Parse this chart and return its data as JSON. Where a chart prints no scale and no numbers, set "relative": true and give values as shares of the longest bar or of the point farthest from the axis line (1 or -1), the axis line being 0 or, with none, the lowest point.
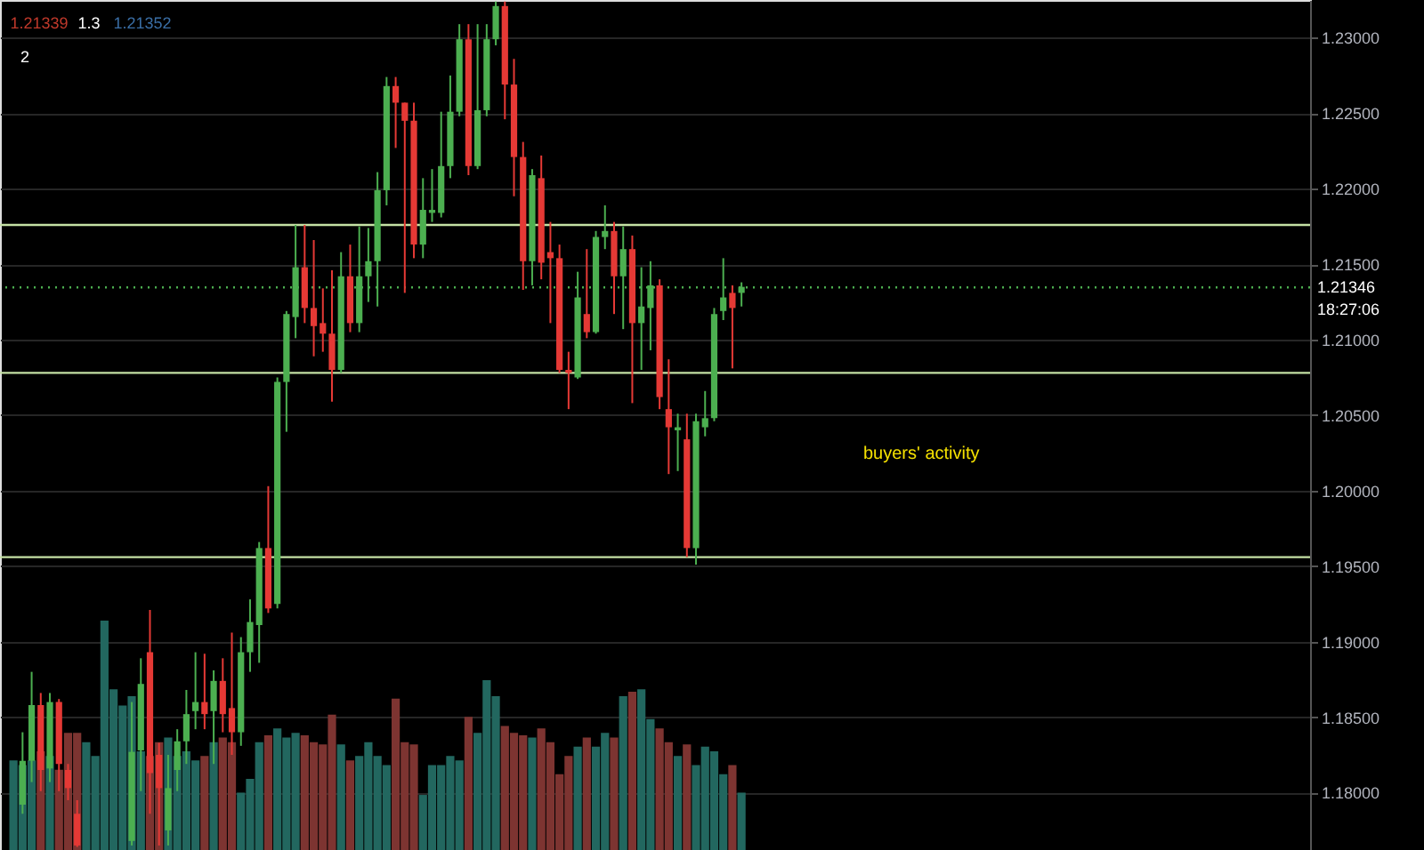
{
  "chart_data": [
    {
      "type": "candlestick",
      "categories": [
        null,
        null,
        null,
        null,
        null,
        null,
        null,
        null,
        null,
        null,
        null,
        null,
        null,
        null,
        null,
        null,
        null,
        null,
        null,
        null,
        null,
        null,
        null,
        null,
        null,
        null,
        null,
        null,
        null,
        null,
        null,
        null,
        null,
        null,
        null,
        null,
        null,
        null,
        null,
        null,
        null,
        null,
        null,
        null,
        null,
        null,
        null,
        null,
        null,
        null,
        null,
        null,
        null,
        null,
        null,
        null,
        null,
        null,
        null,
        null,
        null,
        null,
        null,
        null,
        null,
        null,
        null,
        null,
        null,
        null,
        null,
        null,
        null,
        null,
        null,
        null,
        null,
        null,
        null,
        null,
        null,
        null,
        null,
        null,
        null,
        null,
        null,
        null,
        null,
        null,
        null,
        null,
        null,
        null,
        null,
        null,
        null,
        null,
        null,
        null,
        null,
        null,
        null,
        null,
        null,
        null,
        null,
        null,
        null,
        null,
        null,
        null,
        null,
        null,
        null,
        null,
        null,
        null,
        null,
        null,
        null,
        null,
        null,
        null,
        null,
        null,
        null,
        null,
        null,
        null,
        null,
        null,
        null,
        null,
        null,
        null,
        null,
        null,
        null,
        null,
        null,
        null
      ],
      "ohlc": [
        null,
        [
          1.1792,
          1.184,
          1.1786,
          1.1821
        ],
        [
          1.1821,
          1.188,
          1.1807,
          1.1858
        ],
        [
          1.1858,
          1.1866,
          1.1801,
          1.1815
        ],
        [
          1.1816,
          1.1866,
          1.1807,
          1.186
        ],
        [
          1.186,
          1.1862,
          1.1801,
          1.1819
        ],
        [
          1.1815,
          1.1819,
          1.1795,
          1.1803
        ],
        [
          1.1786,
          1.1795,
          1.1764,
          1.1765
        ],
        null,
        null,
        null,
        null,
        null,
        [
          1.1768,
          1.186,
          1.1765,
          1.1827
        ],
        [
          1.1828,
          1.1889,
          1.1801,
          1.1872
        ],
        [
          1.1893,
          1.1921,
          1.1786,
          1.1813
        ],
        [
          1.1825,
          1.1833,
          1.1765,
          1.1803
        ],
        [
          1.1775,
          1.1825,
          1.1765,
          1.1803
        ],
        [
          1.1815,
          1.1842,
          1.1801,
          1.1834
        ],
        [
          1.1834,
          1.1868,
          1.1819,
          1.1852
        ],
        [
          1.1854,
          1.1893,
          1.1842,
          1.186
        ],
        [
          1.186,
          1.1892,
          1.1842,
          1.1852
        ],
        [
          1.1854,
          1.1881,
          1.1819,
          1.1874
        ],
        [
          1.1874,
          1.1889,
          1.184,
          1.1852
        ],
        [
          1.1856,
          1.1906,
          1.1825,
          1.184
        ],
        [
          1.184,
          1.1903,
          1.1831,
          1.1893
        ],
        [
          1.1893,
          1.1928,
          1.188,
          1.1913
        ],
        [
          1.1911,
          1.1966,
          1.1886,
          1.1962
        ],
        [
          1.1962,
          1.2003,
          1.1919,
          1.1922
        ],
        [
          1.1925,
          1.2075,
          1.1922,
          1.2072
        ],
        [
          1.2072,
          1.2119,
          1.2039,
          1.2117
        ],
        [
          1.2115,
          1.2176,
          1.2101,
          1.2148
        ],
        [
          1.2148,
          1.2176,
          1.2111,
          1.2121
        ],
        [
          1.2121,
          1.2166,
          1.2089,
          1.2109
        ],
        [
          1.2111,
          1.2134,
          1.2092,
          1.2104
        ],
        [
          1.2104,
          1.2146,
          1.2059,
          1.208
        ],
        [
          1.208,
          1.2158,
          1.2078,
          1.2142
        ],
        [
          1.2142,
          1.2163,
          1.2105,
          1.2111
        ],
        [
          1.2111,
          1.2175,
          1.2105,
          1.2142
        ],
        [
          1.2142,
          1.2174,
          1.2125,
          1.2152
        ],
        [
          1.2152,
          1.2211,
          1.2122,
          1.2199
        ],
        [
          1.2199,
          1.2274,
          1.2189,
          1.2268
        ],
        [
          1.2268,
          1.2274,
          1.2227,
          1.2257
        ],
        [
          1.2257,
          1.2257,
          1.2131,
          1.2245
        ],
        [
          1.2245,
          1.2257,
          1.2154,
          1.2163
        ],
        [
          1.2163,
          1.2207,
          1.2154,
          1.2186
        ],
        [
          1.2184,
          1.2213,
          1.2178,
          1.2186
        ],
        [
          1.2184,
          1.2251,
          1.2181,
          1.2215
        ],
        [
          1.2215,
          1.2275,
          1.2207,
          1.2251
        ],
        [
          1.2251,
          1.2309,
          1.2248,
          1.2299
        ],
        [
          1.2299,
          1.2309,
          1.2209,
          1.2215
        ],
        [
          1.2215,
          1.2309,
          1.2213,
          1.2252
        ],
        [
          1.2252,
          1.2309,
          1.2248,
          1.2299
        ],
        [
          1.2299,
          1.2324,
          1.2295,
          1.2321
        ],
        [
          1.2321,
          1.2324,
          1.2246,
          1.2269
        ],
        [
          1.2269,
          1.2286,
          1.2195,
          1.2221
        ],
        [
          1.2221,
          1.2231,
          1.2133,
          1.2152
        ],
        [
          1.2152,
          1.2213,
          1.2136,
          1.2209
        ],
        [
          1.2207,
          1.2222,
          1.214,
          1.2151
        ],
        [
          1.2158,
          1.2178,
          1.2111,
          1.2154
        ],
        [
          1.2154,
          1.2163,
          1.2078,
          1.208
        ],
        [
          1.208,
          1.2092,
          1.2054,
          1.2078
        ],
        [
          1.2075,
          1.2145,
          1.2074,
          1.2128
        ],
        [
          1.2117,
          1.216,
          1.2101,
          1.2105
        ],
        [
          1.2105,
          1.2172,
          1.2104,
          1.2168
        ],
        [
          1.2168,
          1.2189,
          1.216,
          1.2172
        ],
        [
          1.2172,
          1.2178,
          1.2117,
          1.2142
        ],
        [
          1.2142,
          1.2175,
          1.2107,
          1.216
        ],
        [
          1.216,
          1.2169,
          1.2058,
          1.2111
        ],
        [
          1.2111,
          1.2148,
          1.208,
          1.2122
        ],
        [
          1.2121,
          1.2152,
          1.2093,
          1.2136
        ],
        [
          1.2136,
          1.214,
          1.2054,
          1.2062
        ],
        [
          1.2054,
          1.2087,
          1.2011,
          1.2042
        ],
        [
          1.204,
          1.2051,
          1.2013,
          1.2042
        ],
        [
          1.2034,
          1.2051,
          1.1956,
          1.1962
        ],
        [
          1.1962,
          1.2051,
          1.1951,
          1.2046
        ],
        [
          1.2042,
          1.2066,
          1.2036,
          1.2048
        ],
        [
          1.2048,
          1.2121,
          1.2046,
          1.2117
        ],
        [
          1.2119,
          1.2154,
          1.2113,
          1.2128
        ],
        [
          1.2131,
          1.2136,
          1.2081,
          1.2121
        ],
        [
          1.2131,
          1.2138,
          1.2122,
          1.2135
        ],
        null,
        null,
        null,
        null,
        null,
        null,
        null,
        null,
        null,
        null,
        null,
        null,
        null,
        null,
        null,
        null,
        null,
        null,
        null,
        null,
        null,
        null,
        null,
        null,
        null,
        null,
        null,
        null,
        null,
        null,
        null,
        null,
        null,
        null,
        null,
        null,
        null,
        null,
        null,
        null,
        null,
        null,
        null,
        null,
        null,
        null,
        null,
        null,
        null,
        null,
        null,
        null,
        null,
        null,
        null,
        null,
        null,
        null,
        null,
        null,
        null
      ],
      "colors": [
        null,
        "#4caf50",
        "#4caf50",
        "#e53935",
        "#4caf50",
        "#e53935",
        "#e53935",
        "#e53935",
        null,
        null,
        null,
        null,
        null,
        "#4caf50",
        "#4caf50",
        "#e53935",
        "#e53935",
        "#4caf50",
        "#4caf50",
        "#4caf50",
        "#4caf50",
        "#e53935",
        "#4caf50",
        "#e53935",
        "#e53935",
        "#4caf50",
        "#4caf50",
        "#4caf50",
        "#e53935",
        "#4caf50",
        "#4caf50",
        "#4caf50",
        "#e53935",
        "#e53935",
        "#e53935",
        "#e53935",
        "#4caf50",
        "#e53935",
        "#4caf50",
        "#4caf50",
        "#4caf50",
        "#4caf50",
        "#e53935",
        "#e53935",
        "#e53935",
        "#4caf50",
        "#4caf50",
        "#4caf50",
        "#4caf50",
        "#4caf50",
        "#e53935",
        "#4caf50",
        "#4caf50",
        "#4caf50",
        "#e53935",
        "#e53935",
        "#e53935",
        "#4caf50",
        "#e53935",
        "#e53935",
        "#e53935",
        "#e53935",
        "#4caf50",
        "#e53935",
        "#4caf50",
        "#4caf50",
        "#e53935",
        "#4caf50",
        "#e53935",
        "#4caf50",
        "#4caf50",
        "#e53935",
        "#e53935",
        "#4caf50",
        "#e53935",
        "#4caf50",
        "#4caf50",
        "#4caf50",
        "#4caf50",
        "#e53935",
        "#4caf50",
        null,
        null,
        null,
        null,
        null,
        null,
        null,
        null,
        null,
        null,
        null,
        null,
        null,
        null,
        null,
        null,
        null,
        null,
        null,
        null,
        null,
        null,
        null,
        null,
        null,
        null,
        null,
        null,
        null,
        null,
        null,
        null,
        null,
        null,
        null,
        null,
        null,
        null,
        null,
        null,
        null,
        null,
        null,
        null,
        null,
        null,
        null,
        null,
        null,
        null,
        null,
        null,
        null,
        null,
        null,
        null,
        null,
        null,
        null,
        null,
        null
      ],
      "ylim": [
        1.1762,
        1.2325
      ],
      "yticks": [
        {
          "value": 1.18,
          "label": "1.18000"
        },
        {
          "value": 1.185,
          "label": "1.18500"
        },
        {
          "value": 1.19,
          "label": "1.19000"
        },
        {
          "value": 1.195,
          "label": "1.19500"
        },
        {
          "value": 1.2,
          "label": "1.20000"
        },
        {
          "value": 1.205,
          "label": "1.20500"
        },
        {
          "value": 1.21,
          "label": "1.21000"
        },
        {
          "value": 1.215,
          "label": "1.21500"
        },
        {
          "value": 1.22,
          "label": "1.22000"
        },
        {
          "value": 1.225,
          "label": "1.22500"
        },
        {
          "value": 1.23,
          "label": "1.23000"
        }
      ],
      "tick_labels": "y",
      "grid": true,
      "ref_lines": [
        {
          "axis": "y",
          "value": 1.2176,
          "color": "#c5e1a5"
        },
        {
          "axis": "y",
          "value": 1.2078,
          "color": "#c5e1a5"
        },
        {
          "axis": "y",
          "value": 1.1956,
          "color": "#c5e1a5"
        },
        {
          "axis": "y",
          "value": 1.21346,
          "label": "1.21346",
          "color": "#4caf50",
          "line_style": "dotted"
        }
      ],
      "annotations": [
        "buyers' activity",
        "18:27:06",
        "1.21339",
        "1.3",
        "1.21352",
        "2"
      ]
    },
    {
      "type": "bar",
      "relative": true,
      "categories": [
        null,
        null,
        null,
        null,
        null,
        null,
        null,
        null,
        null,
        null,
        null,
        null,
        null,
        null,
        null,
        null,
        null,
        null,
        null,
        null,
        null,
        null,
        null,
        null,
        null,
        null,
        null,
        null,
        null,
        null,
        null,
        null,
        null,
        null,
        null,
        null,
        null,
        null,
        null,
        null,
        null,
        null,
        null,
        null,
        null,
        null,
        null,
        null,
        null,
        null,
        null,
        null,
        null,
        null,
        null,
        null,
        null,
        null,
        null,
        null,
        null,
        null,
        null,
        null,
        null,
        null,
        null,
        null,
        null,
        null,
        null,
        null,
        null,
        null,
        null,
        null,
        null,
        null,
        null,
        null,
        null,
        null,
        null,
        null,
        null,
        null,
        null,
        null,
        null,
        null,
        null,
        null,
        null,
        null,
        null,
        null,
        null,
        null,
        null,
        null,
        null,
        null,
        null,
        null,
        null,
        null,
        null,
        null,
        null,
        null,
        null,
        null,
        null,
        null,
        null,
        null,
        null,
        null,
        null,
        null,
        null,
        null,
        null,
        null,
        null,
        null,
        null,
        null,
        null,
        null,
        null,
        null,
        null,
        null,
        null,
        null,
        null,
        null,
        null,
        null,
        null,
        null
      ],
      "values": [
        0.39,
        0.37,
        0.39,
        0.43,
        0.41,
        0.35,
        0.51,
        0.51,
        0.47,
        0.41,
        1,
        0.7,
        0.63,
        0.67,
        0.43,
        0.41,
        0.47,
        0.49,
        0.41,
        0.43,
        0.39,
        0.41,
        0.47,
        0.49,
        0.47,
        0.25,
        0.31,
        0.47,
        0.5,
        0.53,
        0.49,
        0.51,
        0.5,
        0.47,
        0.46,
        0.59,
        0.46,
        0.39,
        0.41,
        0.47,
        0.41,
        0.37,
        0.66,
        0.47,
        0.46,
        0.24,
        0.37,
        0.37,
        0.41,
        0.39,
        0.58,
        0.51,
        0.74,
        0.67,
        0.54,
        0.51,
        0.5,
        0.49,
        0.53,
        0.47,
        0.33,
        0.41,
        0.45,
        0.49,
        0.45,
        0.51,
        0.49,
        0.67,
        0.69,
        0.7,
        0.57,
        0.53,
        0.47,
        0.41,
        0.46,
        0.37,
        0.45,
        0.43,
        0.33,
        0.37,
        0.25,
        null,
        null,
        null,
        null,
        null,
        null,
        null,
        null,
        null,
        null,
        null,
        null,
        null,
        null,
        null,
        null,
        null,
        null,
        null,
        null,
        null,
        null,
        null,
        null,
        null,
        null,
        null,
        null,
        null,
        null,
        null,
        null,
        null,
        null,
        null,
        null,
        null,
        null,
        null,
        null,
        null,
        null,
        null,
        null,
        null,
        null,
        null,
        null,
        null,
        null,
        null,
        null,
        null,
        null,
        null,
        null,
        null,
        null,
        null,
        null,
        null
      ],
      "colors": [
        "#22675f",
        "#22675f",
        "#22675f",
        "#7d3431",
        "#22675f",
        "#7d3431",
        "#7d3431",
        "#7d3431",
        "#22675f",
        "#22675f",
        "#22675f",
        "#22675f",
        "#22675f",
        "#22675f",
        "#22675f",
        "#7d3431",
        "#7d3431",
        "#22675f",
        "#22675f",
        "#22675f",
        "#22675f",
        "#7d3431",
        "#22675f",
        "#7d3431",
        "#7d3431",
        "#22675f",
        "#22675f",
        "#22675f",
        "#7d3431",
        "#22675f",
        "#22675f",
        "#22675f",
        "#7d3431",
        "#7d3431",
        "#7d3431",
        "#7d3431",
        "#22675f",
        "#7d3431",
        "#22675f",
        "#22675f",
        "#22675f",
        "#22675f",
        "#7d3431",
        "#7d3431",
        "#7d3431",
        "#22675f",
        "#22675f",
        "#22675f",
        "#22675f",
        "#22675f",
        "#7d3431",
        "#22675f",
        "#22675f",
        "#22675f",
        "#7d3431",
        "#7d3431",
        "#7d3431",
        "#22675f",
        "#7d3431",
        "#7d3431",
        "#7d3431",
        "#7d3431",
        "#22675f",
        "#7d3431",
        "#22675f",
        "#22675f",
        "#7d3431",
        "#22675f",
        "#7d3431",
        "#22675f",
        "#22675f",
        "#7d3431",
        "#7d3431",
        "#22675f",
        "#7d3431",
        "#22675f",
        "#22675f",
        "#22675f",
        "#22675f",
        "#7d3431",
        "#22675f",
        null,
        null,
        null,
        null,
        null,
        null,
        null,
        null,
        null,
        null,
        null,
        null,
        null,
        null,
        null,
        null,
        null,
        null,
        null,
        null,
        null,
        null,
        null,
        null,
        null,
        null,
        null,
        null,
        null,
        null,
        null,
        null,
        null,
        null,
        null,
        null,
        null,
        null,
        null,
        null,
        null,
        null,
        null,
        null,
        null,
        null,
        null,
        null,
        null,
        null,
        null,
        null,
        null,
        null,
        null,
        null,
        null,
        null,
        null,
        null,
        null
      ]
    }
  ]
}
